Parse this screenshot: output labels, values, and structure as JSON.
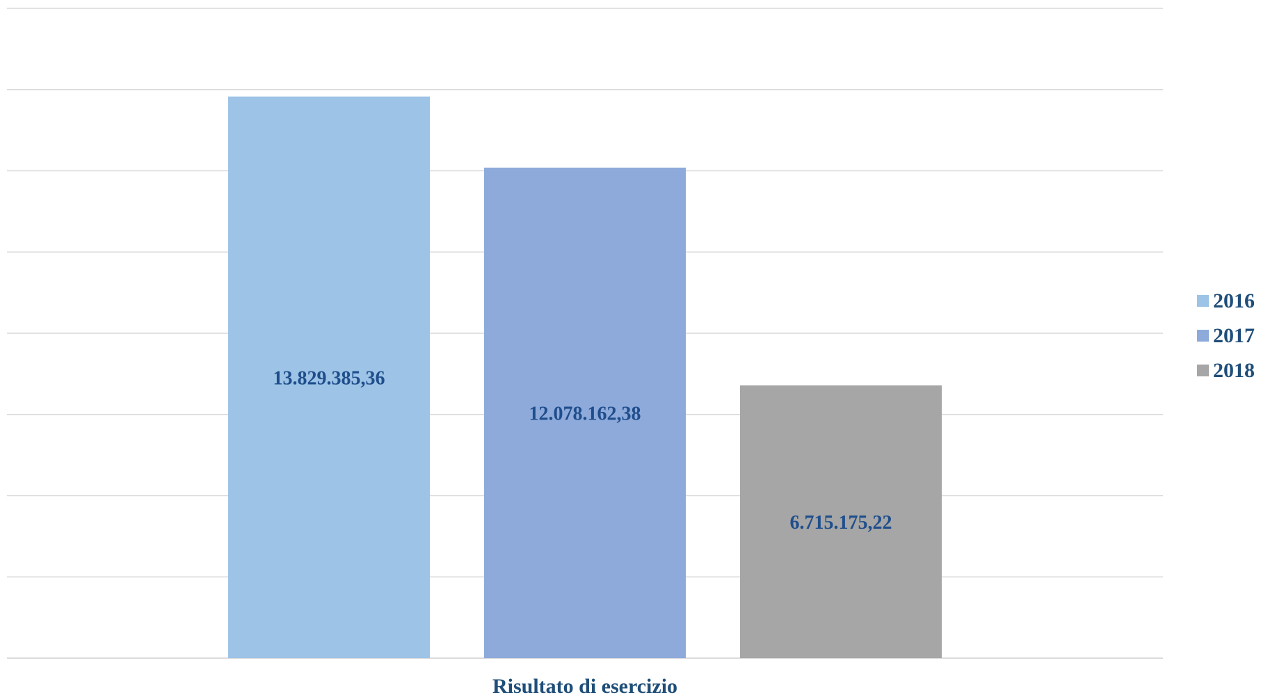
{
  "chart_data": {
    "type": "bar",
    "categories": [
      "Risultato di esercizio"
    ],
    "series": [
      {
        "name": "2016",
        "values": [
          13829385.36
        ],
        "label": "13.829.385,36",
        "color": "#9dc3e6"
      },
      {
        "name": "2017",
        "values": [
          12078162.38
        ],
        "label": "12.078.162,38",
        "color": "#8eaadb"
      },
      {
        "name": "2018",
        "values": [
          6715175.22
        ],
        "label": "6.715.175,22",
        "color": "#a6a6a6"
      }
    ],
    "title": "",
    "xlabel": "",
    "ylabel": "",
    "ylim": [
      0,
      16000000
    ],
    "grid": true,
    "legend": "right",
    "colors": {
      "gridline": "#d9d9d9",
      "text": "#1f4e79"
    }
  }
}
